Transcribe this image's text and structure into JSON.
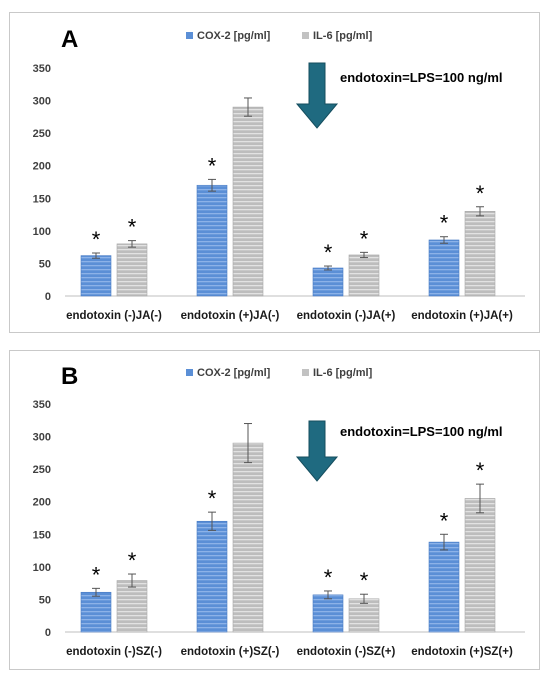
{
  "colors": {
    "cox2": "#5b8fd6",
    "il6": "#c2c2c2",
    "arrow": "#1f6a80"
  },
  "legend_labels": [
    "COX-2 [pg/ml]",
    "IL-6 [pg/ml]"
  ],
  "chart_data": [
    {
      "type": "bar",
      "panel_label": "A",
      "annotation": "endotoxin=LPS=100 ng/ml",
      "categories": [
        "endotoxin (-)JA(-)",
        "endotoxin (+)JA(-)",
        "endotoxin (-)JA(+)",
        "endotoxin (+)JA(+)"
      ],
      "series": [
        {
          "name": "COX-2 [pg/ml]",
          "values": [
            62,
            170,
            43,
            86
          ],
          "errors": [
            4,
            9,
            3,
            5
          ],
          "significant": [
            true,
            true,
            true,
            true
          ]
        },
        {
          "name": "IL-6 [pg/ml]",
          "values": [
            80,
            290,
            63,
            130
          ],
          "errors": [
            5,
            14,
            4,
            7
          ],
          "significant": [
            true,
            false,
            true,
            true
          ]
        }
      ],
      "ylim": [
        0,
        350
      ],
      "yticks": [
        0,
        50,
        100,
        150,
        200,
        250,
        300,
        350
      ],
      "grid": false,
      "legend": "top-center"
    },
    {
      "type": "bar",
      "panel_label": "B",
      "annotation": "endotoxin=LPS=100 ng/ml",
      "categories": [
        "endotoxin (-)SZ(-)",
        "endotoxin (+)SZ(-)",
        "endotoxin (-)SZ(+)",
        "endotoxin (+)SZ(+)"
      ],
      "series": [
        {
          "name": "COX-2 [pg/ml]",
          "values": [
            61,
            170,
            57,
            138
          ],
          "errors": [
            6,
            14,
            6,
            12
          ],
          "significant": [
            true,
            true,
            true,
            true
          ]
        },
        {
          "name": "IL-6 [pg/ml]",
          "values": [
            79,
            290,
            51,
            205
          ],
          "errors": [
            10,
            30,
            7,
            22
          ],
          "significant": [
            true,
            false,
            true,
            true
          ]
        }
      ],
      "ylim": [
        0,
        350
      ],
      "yticks": [
        0,
        50,
        100,
        150,
        200,
        250,
        300,
        350
      ],
      "grid": false,
      "legend": "top-center"
    }
  ]
}
